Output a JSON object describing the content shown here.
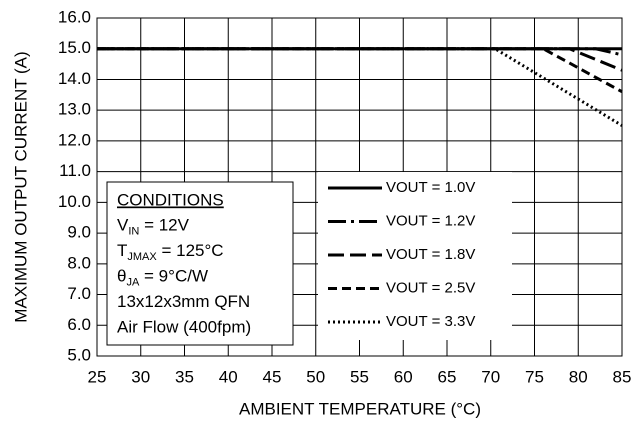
{
  "chart_data": {
    "type": "line",
    "xlabel": "AMBIENT TEMPERATURE (°C)",
    "ylabel": "MAXIMUM OUTPUT  CURRENT (A)",
    "xlim": [
      25,
      85
    ],
    "ylim": [
      5,
      16
    ],
    "xticks": [
      25,
      30,
      35,
      40,
      45,
      50,
      55,
      60,
      65,
      70,
      75,
      80,
      85
    ],
    "yticks": [
      {
        "value": 5,
        "label": "5.0"
      },
      {
        "value": 6,
        "label": "6.0"
      },
      {
        "value": 7,
        "label": "7.0"
      },
      {
        "value": 8,
        "label": "8.0"
      },
      {
        "value": 9,
        "label": "9.0"
      },
      {
        "value": 10,
        "label": "10.0"
      },
      {
        "value": 11,
        "label": "11.0"
      },
      {
        "value": 12,
        "label": "12.0"
      },
      {
        "value": 13,
        "label": "13.0"
      },
      {
        "value": 14,
        "label": "14.0"
      },
      {
        "value": 15,
        "label": "15.0"
      },
      {
        "value": 16,
        "label": "16.0"
      }
    ],
    "grid": true,
    "series": [
      {
        "name": "VOUT = 1.0V",
        "color": "#000000",
        "style": "solid",
        "x": [
          25,
          85
        ],
        "values": [
          15,
          15
        ]
      },
      {
        "name": "VOUT = 1.2V",
        "color": "#000000",
        "style": "long-dash-dot",
        "x": [
          25,
          82,
          85
        ],
        "values": [
          15,
          15,
          14.8
        ]
      },
      {
        "name": "VOUT = 1.8V",
        "color": "#000000",
        "style": "long-dash",
        "x": [
          25,
          79,
          85
        ],
        "values": [
          15,
          15,
          14.3
        ]
      },
      {
        "name": "VOUT = 2.5V",
        "color": "#000000",
        "style": "dash",
        "x": [
          25,
          76,
          85
        ],
        "values": [
          15,
          15,
          13.6
        ]
      },
      {
        "name": "VOUT = 3.3V",
        "color": "#000000",
        "style": "dot",
        "x": [
          25,
          70.5,
          85
        ],
        "values": [
          15,
          15,
          12.5
        ]
      }
    ],
    "conditions": {
      "title": "CONDITIONS",
      "lines": [
        {
          "main": "V",
          "sub": "IN",
          "rest": " = 12V"
        },
        {
          "main": "T",
          "sub": "JMAX",
          "rest": " = 125°C"
        },
        {
          "main": "θ",
          "sub": "JA",
          "rest": " = 9°C/W"
        },
        {
          "main": "13x12x3mm QFN"
        },
        {
          "main": "Air Flow (400fpm)"
        }
      ]
    }
  }
}
